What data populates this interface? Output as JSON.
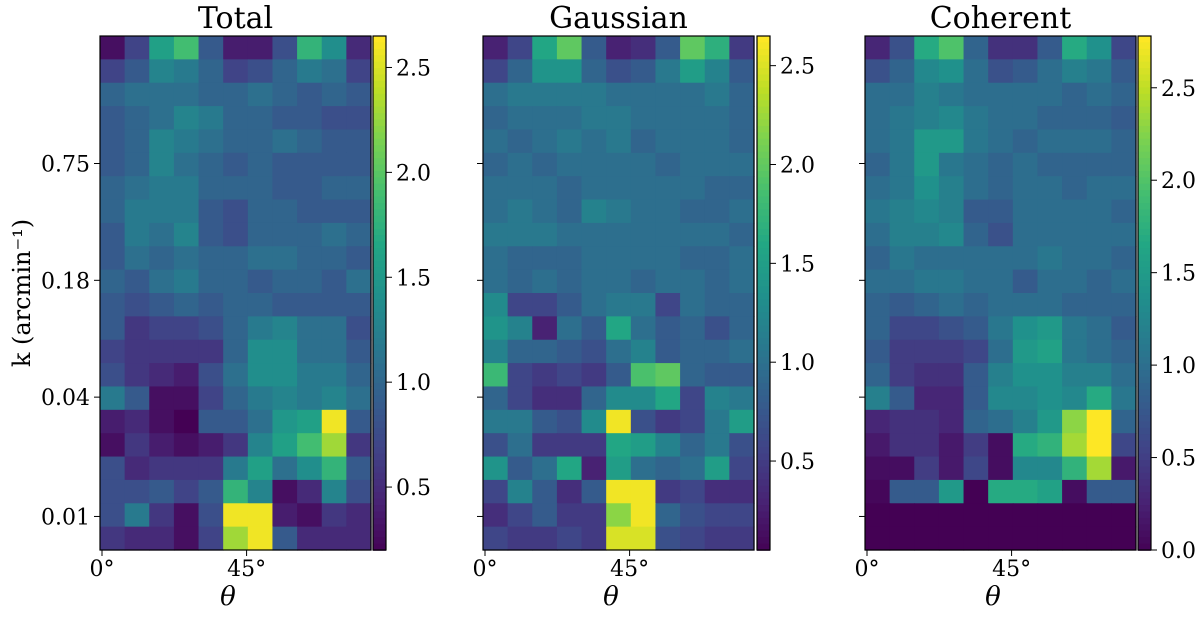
{
  "figure": {
    "panels": [
      {
        "title": "Total",
        "x_ticks": [
          "0°",
          "45°"
        ],
        "xlabel": "θ",
        "y_ticks": [
          "0.75",
          "0.18",
          "0.04",
          "0.01"
        ],
        "ylabel": "k (arcmin⁻¹)",
        "colorbar_ticks": [
          "0.5",
          "1.0",
          "1.5",
          "2.0",
          "2.5"
        ]
      },
      {
        "title": "Gaussian",
        "x_ticks": [
          "0°",
          "45°"
        ],
        "xlabel": "θ",
        "colorbar_ticks": [
          "0.5",
          "1.0",
          "1.5",
          "2.0",
          "2.5"
        ]
      },
      {
        "title": "Coherent",
        "x_ticks": [
          "0°",
          "45°"
        ],
        "xlabel": "θ",
        "colorbar_ticks": [
          "0.0",
          "0.5",
          "1.0",
          "1.5",
          "2.0",
          "2.5"
        ]
      }
    ]
  },
  "chart_data": [
    {
      "type": "heatmap",
      "title": "Total",
      "xlabel": "θ",
      "ylabel": "k (arcmin⁻¹)",
      "colormap": "viridis",
      "vmin": 0.2,
      "vmax": 2.65,
      "colorbar_ticks": [
        0.5,
        1.0,
        1.5,
        2.0,
        2.5
      ],
      "x_tick_labels": [
        "0°",
        "45°"
      ],
      "y_tick_labels": [
        "0.75",
        "0.18",
        "0.04",
        "0.01"
      ],
      "rows_top_to_bottom": [
        [
          0.3,
          0.7,
          1.6,
          1.9,
          0.9,
          0.4,
          0.4,
          0.8,
          1.8,
          1.4,
          0.5
        ],
        [
          0.7,
          0.9,
          1.3,
          1.2,
          1.0,
          0.7,
          0.8,
          1.0,
          1.2,
          1.1,
          0.7
        ],
        [
          1.0,
          1.1,
          1.1,
          1.1,
          1.0,
          1.0,
          1.1,
          1.0,
          0.9,
          1.0,
          0.9
        ],
        [
          0.9,
          1.0,
          1.1,
          1.3,
          1.2,
          1.0,
          1.0,
          0.9,
          0.9,
          0.8,
          0.8
        ],
        [
          0.9,
          1.0,
          1.3,
          1.2,
          1.1,
          1.0,
          1.0,
          1.1,
          1.0,
          0.9,
          0.9
        ],
        [
          0.9,
          1.0,
          1.3,
          1.1,
          1.0,
          0.9,
          1.0,
          0.9,
          0.9,
          0.9,
          0.9
        ],
        [
          1.0,
          1.1,
          1.2,
          1.2,
          1.0,
          1.0,
          1.0,
          0.9,
          0.9,
          1.0,
          1.0
        ],
        [
          1.0,
          1.2,
          1.2,
          1.2,
          0.9,
          0.8,
          1.0,
          1.0,
          0.9,
          0.9,
          0.9
        ],
        [
          0.9,
          1.2,
          1.1,
          1.3,
          0.9,
          0.8,
          1.0,
          1.0,
          1.0,
          1.1,
          1.0
        ],
        [
          0.9,
          1.1,
          1.0,
          1.1,
          1.0,
          1.0,
          1.1,
          1.1,
          1.0,
          1.0,
          0.9
        ],
        [
          1.0,
          0.9,
          1.1,
          1.2,
          1.0,
          1.0,
          0.9,
          1.0,
          1.0,
          0.9,
          1.1
        ],
        [
          0.9,
          0.8,
          0.9,
          1.0,
          0.9,
          1.0,
          1.0,
          0.9,
          0.9,
          0.9,
          0.9
        ],
        [
          0.9,
          0.6,
          0.7,
          0.7,
          0.8,
          1.0,
          1.2,
          1.3,
          1.1,
          1.1,
          0.8
        ],
        [
          0.7,
          0.6,
          0.6,
          0.6,
          0.6,
          1.0,
          1.4,
          1.4,
          1.1,
          1.1,
          0.9
        ],
        [
          0.8,
          0.6,
          0.5,
          0.4,
          0.8,
          1.1,
          1.4,
          1.4,
          1.2,
          1.2,
          1.0
        ],
        [
          1.2,
          0.9,
          0.3,
          0.3,
          0.7,
          1.0,
          1.2,
          1.3,
          1.2,
          1.3,
          1.1
        ],
        [
          0.4,
          0.5,
          0.3,
          0.2,
          0.9,
          0.9,
          1.1,
          1.5,
          1.6,
          2.6,
          0.9
        ],
        [
          0.3,
          0.6,
          0.4,
          0.3,
          0.4,
          0.6,
          1.3,
          1.6,
          1.9,
          2.3,
          0.6
        ],
        [
          0.8,
          0.5,
          0.6,
          0.6,
          0.6,
          1.2,
          1.6,
          1.1,
          1.4,
          1.8,
          0.9
        ],
        [
          0.8,
          0.8,
          0.9,
          0.7,
          0.9,
          1.8,
          1.3,
          0.3,
          0.5,
          1.3,
          0.8
        ],
        [
          0.8,
          1.2,
          0.6,
          0.3,
          0.8,
          2.6,
          2.6,
          0.4,
          0.3,
          0.6,
          0.5
        ],
        [
          0.6,
          0.5,
          0.5,
          0.3,
          0.7,
          2.3,
          2.6,
          0.9,
          0.5,
          0.5,
          0.5
        ]
      ]
    },
    {
      "type": "heatmap",
      "title": "Gaussian",
      "xlabel": "θ",
      "colormap": "viridis",
      "vmin": 0.05,
      "vmax": 2.65,
      "colorbar_ticks": [
        0.5,
        1.0,
        1.5,
        2.0,
        2.5
      ],
      "x_tick_labels": [
        "0°",
        "45°"
      ],
      "rows_top_to_bottom": [
        [
          0.3,
          0.6,
          1.6,
          2.0,
          0.8,
          0.3,
          0.4,
          0.8,
          2.0,
          1.7,
          0.5
        ],
        [
          0.6,
          0.9,
          1.4,
          1.4,
          0.9,
          0.7,
          0.8,
          1.1,
          1.5,
          1.2,
          0.8
        ],
        [
          1.0,
          1.1,
          1.1,
          1.1,
          1.1,
          1.0,
          1.0,
          1.0,
          1.0,
          1.1,
          0.9
        ],
        [
          0.9,
          1.0,
          1.0,
          1.0,
          1.1,
          1.1,
          1.0,
          1.0,
          1.0,
          1.0,
          0.9
        ],
        [
          1.0,
          0.9,
          1.0,
          1.1,
          1.0,
          1.1,
          0.9,
          1.0,
          1.0,
          1.0,
          0.9
        ],
        [
          0.9,
          1.0,
          0.9,
          1.0,
          1.0,
          1.0,
          1.0,
          0.9,
          1.0,
          1.0,
          1.0
        ],
        [
          1.0,
          1.0,
          1.0,
          0.9,
          1.0,
          1.0,
          1.0,
          1.0,
          1.0,
          0.9,
          0.9
        ],
        [
          1.0,
          1.1,
          1.0,
          0.9,
          1.2,
          1.1,
          1.0,
          1.0,
          0.9,
          0.9,
          1.0
        ],
        [
          1.1,
          1.1,
          1.1,
          1.0,
          1.0,
          1.0,
          1.0,
          1.0,
          1.0,
          1.0,
          0.9
        ],
        [
          1.0,
          0.9,
          0.9,
          0.9,
          1.0,
          1.0,
          1.0,
          1.0,
          0.9,
          0.9,
          1.0
        ],
        [
          1.0,
          0.9,
          1.0,
          0.9,
          1.0,
          1.0,
          0.9,
          1.0,
          1.0,
          0.9,
          1.0
        ],
        [
          1.3,
          0.6,
          0.6,
          0.8,
          1.0,
          1.1,
          1.1,
          0.6,
          1.0,
          0.9,
          0.9
        ],
        [
          1.4,
          1.2,
          0.3,
          1.0,
          0.8,
          1.6,
          1.0,
          0.8,
          0.9,
          0.7,
          0.9
        ],
        [
          1.2,
          0.9,
          0.9,
          0.8,
          0.7,
          1.0,
          1.2,
          0.8,
          0.9,
          0.9,
          1.0
        ],
        [
          1.8,
          0.6,
          0.5,
          0.6,
          0.5,
          0.8,
          1.9,
          2.0,
          0.9,
          0.8,
          0.8
        ],
        [
          0.9,
          0.6,
          0.4,
          0.4,
          0.9,
          1.3,
          1.3,
          1.6,
          0.6,
          1.2,
          1.1
        ],
        [
          1.1,
          1.1,
          0.8,
          0.7,
          1.3,
          2.6,
          0.7,
          0.5,
          0.6,
          1.1,
          1.5
        ],
        [
          0.7,
          1.0,
          0.5,
          0.5,
          0.5,
          1.6,
          1.5,
          1.2,
          0.9,
          1.1,
          0.7
        ],
        [
          1.4,
          0.8,
          1.0,
          1.6,
          0.3,
          1.5,
          1.0,
          0.9,
          1.0,
          1.5,
          0.6
        ],
        [
          0.6,
          1.2,
          0.8,
          0.4,
          0.8,
          2.6,
          2.6,
          0.5,
          0.6,
          0.4,
          0.4
        ],
        [
          0.4,
          0.6,
          0.8,
          0.5,
          0.5,
          2.2,
          2.6,
          0.9,
          0.7,
          0.6,
          0.6
        ],
        [
          0.6,
          0.5,
          0.5,
          0.6,
          0.5,
          2.5,
          2.5,
          0.7,
          0.6,
          0.5,
          0.5
        ]
      ]
    },
    {
      "type": "heatmap",
      "title": "Coherent",
      "xlabel": "θ",
      "colormap": "viridis",
      "vmin": 0.0,
      "vmax": 2.78,
      "colorbar_ticks": [
        0.0,
        0.5,
        1.0,
        1.5,
        2.0,
        2.5
      ],
      "x_tick_labels": [
        "0°",
        "45°"
      ],
      "rows_top_to_bottom": [
        [
          0.3,
          0.7,
          1.7,
          2.0,
          0.9,
          0.4,
          0.4,
          0.8,
          1.7,
          1.4,
          0.6
        ],
        [
          0.7,
          0.9,
          1.3,
          1.4,
          1.0,
          0.7,
          0.8,
          1.0,
          1.2,
          1.1,
          0.8
        ],
        [
          1.0,
          1.0,
          1.2,
          1.1,
          1.0,
          1.0,
          1.0,
          1.0,
          0.9,
          1.0,
          0.9
        ],
        [
          1.0,
          1.1,
          1.2,
          1.3,
          1.1,
          1.0,
          1.0,
          0.9,
          0.9,
          0.9,
          0.8
        ],
        [
          1.0,
          1.1,
          1.5,
          1.5,
          1.1,
          1.0,
          0.9,
          1.0,
          1.0,
          1.0,
          0.9
        ],
        [
          0.9,
          1.1,
          1.5,
          1.1,
          1.0,
          0.9,
          1.0,
          0.9,
          0.9,
          0.9,
          0.9
        ],
        [
          1.0,
          1.1,
          1.4,
          1.2,
          1.0,
          0.9,
          1.0,
          1.0,
          0.9,
          1.0,
          1.0
        ],
        [
          1.1,
          1.2,
          1.3,
          1.2,
          0.8,
          0.8,
          1.0,
          1.0,
          1.0,
          1.0,
          0.9
        ],
        [
          1.0,
          1.2,
          1.2,
          1.3,
          0.9,
          0.7,
          1.0,
          1.0,
          1.0,
          1.0,
          1.0
        ],
        [
          0.9,
          1.1,
          1.0,
          1.0,
          1.0,
          1.0,
          1.0,
          1.1,
          1.0,
          1.0,
          0.9
        ],
        [
          1.0,
          1.0,
          1.1,
          1.1,
          1.0,
          1.0,
          0.8,
          1.0,
          1.0,
          0.9,
          1.0
        ],
        [
          0.9,
          0.8,
          0.9,
          1.0,
          0.9,
          1.0,
          1.0,
          1.0,
          0.9,
          0.9,
          0.9
        ],
        [
          0.9,
          0.6,
          0.6,
          0.7,
          0.8,
          1.1,
          1.4,
          1.5,
          1.1,
          1.0,
          0.8
        ],
        [
          0.8,
          0.5,
          0.5,
          0.5,
          0.6,
          1.0,
          1.5,
          1.6,
          1.1,
          1.0,
          0.9
        ],
        [
          0.9,
          0.5,
          0.4,
          0.4,
          0.8,
          1.2,
          1.4,
          1.4,
          1.2,
          1.2,
          1.0
        ],
        [
          1.2,
          0.8,
          0.3,
          0.3,
          0.8,
          1.3,
          1.3,
          1.4,
          1.3,
          1.7,
          1.1
        ],
        [
          0.3,
          0.4,
          0.4,
          0.3,
          0.9,
          1.0,
          1.2,
          1.5,
          2.3,
          2.8,
          0.9
        ],
        [
          0.2,
          0.4,
          0.4,
          0.2,
          0.5,
          0.1,
          1.7,
          1.8,
          2.4,
          2.8,
          0.6
        ],
        [
          0.1,
          0.1,
          0.5,
          0.2,
          0.6,
          0.1,
          1.3,
          1.3,
          1.8,
          2.4,
          0.2
        ],
        [
          0.05,
          0.8,
          0.8,
          1.5,
          0.0,
          1.7,
          1.7,
          1.6,
          0.1,
          0.8,
          0.8
        ],
        [
          0.0,
          0.0,
          0.0,
          0.0,
          0.0,
          0.0,
          0.0,
          0.0,
          0.0,
          0.0,
          0.0
        ],
        [
          0.0,
          0.0,
          0.0,
          0.0,
          0.0,
          0.0,
          0.0,
          0.0,
          0.0,
          0.0,
          0.0
        ]
      ]
    }
  ]
}
